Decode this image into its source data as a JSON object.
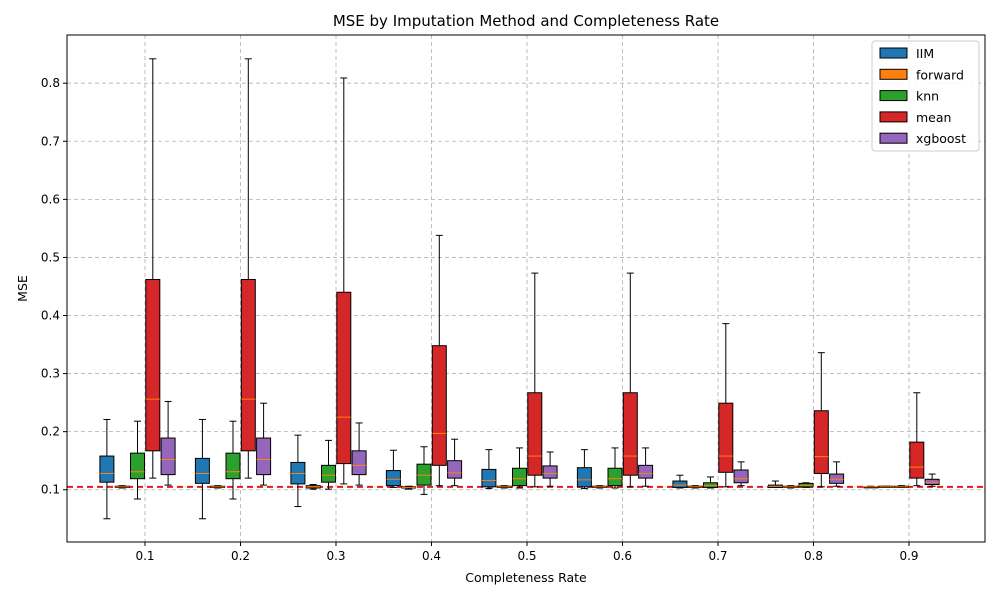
{
  "chart_data": {
    "type": "box",
    "title": "MSE by Imputation Method and Completeness Rate",
    "xlabel": "Completeness Rate",
    "ylabel": "MSE",
    "categories": [
      "0.1",
      "0.2",
      "0.3",
      "0.4",
      "0.5",
      "0.6",
      "0.7",
      "0.8",
      "0.9"
    ],
    "ylim": [
      0.01,
      0.883
    ],
    "yticks": [
      "0.1",
      "0.2",
      "0.3",
      "0.4",
      "0.5",
      "0.6",
      "0.7",
      "0.8"
    ],
    "grid": true,
    "legend_position": "top-right",
    "reference_line": {
      "y": 0.105,
      "color": "#e41a1c",
      "style": "dashed"
    },
    "series": [
      {
        "name": "IIM",
        "color": "#1f77b4",
        "boxes": [
          {
            "whislo": 0.05,
            "q1": 0.113,
            "med": 0.128,
            "q3": 0.158,
            "whishi": 0.221
          },
          {
            "whislo": 0.05,
            "q1": 0.111,
            "med": 0.128,
            "q3": 0.154,
            "whishi": 0.221
          },
          {
            "whislo": 0.071,
            "q1": 0.11,
            "med": 0.128,
            "q3": 0.147,
            "whishi": 0.194
          },
          {
            "whislo": 0.104,
            "q1": 0.107,
            "med": 0.118,
            "q3": 0.133,
            "whishi": 0.168
          },
          {
            "whislo": 0.102,
            "q1": 0.105,
            "med": 0.116,
            "q3": 0.135,
            "whishi": 0.169
          },
          {
            "whislo": 0.102,
            "q1": 0.105,
            "med": 0.117,
            "q3": 0.138,
            "whishi": 0.169
          },
          {
            "whislo": 0.103,
            "q1": 0.104,
            "med": 0.108,
            "q3": 0.115,
            "whishi": 0.125
          },
          {
            "whislo": 0.104,
            "q1": 0.104,
            "med": 0.106,
            "q3": 0.108,
            "whishi": 0.115
          },
          {
            "whislo": 0.104,
            "q1": 0.104,
            "med": 0.105,
            "q3": 0.105,
            "whishi": 0.106
          }
        ]
      },
      {
        "name": "forward",
        "color": "#ff7f0e",
        "boxes": [
          {
            "whislo": 0.103,
            "q1": 0.104,
            "med": 0.105,
            "q3": 0.106,
            "whishi": 0.107
          },
          {
            "whislo": 0.103,
            "q1": 0.104,
            "med": 0.105,
            "q3": 0.106,
            "whishi": 0.107
          },
          {
            "whislo": 0.101,
            "q1": 0.103,
            "med": 0.105,
            "q3": 0.107,
            "whishi": 0.109
          },
          {
            "whislo": 0.101,
            "q1": 0.103,
            "med": 0.104,
            "q3": 0.105,
            "whishi": 0.106
          },
          {
            "whislo": 0.103,
            "q1": 0.104,
            "med": 0.105,
            "q3": 0.106,
            "whishi": 0.107
          },
          {
            "whislo": 0.103,
            "q1": 0.104,
            "med": 0.105,
            "q3": 0.106,
            "whishi": 0.107
          },
          {
            "whislo": 0.103,
            "q1": 0.104,
            "med": 0.105,
            "q3": 0.106,
            "whishi": 0.107
          },
          {
            "whislo": 0.103,
            "q1": 0.104,
            "med": 0.105,
            "q3": 0.106,
            "whishi": 0.107
          },
          {
            "whislo": 0.104,
            "q1": 0.104,
            "med": 0.105,
            "q3": 0.106,
            "whishi": 0.106
          }
        ]
      },
      {
        "name": "knn",
        "color": "#2ca02c",
        "boxes": [
          {
            "whislo": 0.084,
            "q1": 0.119,
            "med": 0.131,
            "q3": 0.163,
            "whishi": 0.218
          },
          {
            "whislo": 0.084,
            "q1": 0.119,
            "med": 0.131,
            "q3": 0.163,
            "whishi": 0.218
          },
          {
            "whislo": 0.101,
            "q1": 0.113,
            "med": 0.125,
            "q3": 0.142,
            "whishi": 0.185
          },
          {
            "whislo": 0.092,
            "q1": 0.108,
            "med": 0.125,
            "q3": 0.144,
            "whishi": 0.174
          },
          {
            "whislo": 0.103,
            "q1": 0.107,
            "med": 0.119,
            "q3": 0.137,
            "whishi": 0.172
          },
          {
            "whislo": 0.103,
            "q1": 0.107,
            "med": 0.119,
            "q3": 0.137,
            "whishi": 0.172
          },
          {
            "whislo": 0.103,
            "q1": 0.104,
            "med": 0.107,
            "q3": 0.112,
            "whishi": 0.122
          },
          {
            "whislo": 0.104,
            "q1": 0.105,
            "med": 0.107,
            "q3": 0.111,
            "whishi": 0.112
          },
          {
            "whislo": 0.104,
            "q1": 0.104,
            "med": 0.105,
            "q3": 0.106,
            "whishi": 0.107
          }
        ]
      },
      {
        "name": "mean",
        "color": "#d62728",
        "boxes": [
          {
            "whislo": 0.12,
            "q1": 0.167,
            "med": 0.256,
            "q3": 0.462,
            "whishi": 0.842
          },
          {
            "whislo": 0.12,
            "q1": 0.167,
            "med": 0.256,
            "q3": 0.462,
            "whishi": 0.842
          },
          {
            "whislo": 0.11,
            "q1": 0.145,
            "med": 0.225,
            "q3": 0.44,
            "whishi": 0.809
          },
          {
            "whislo": 0.107,
            "q1": 0.142,
            "med": 0.197,
            "q3": 0.348,
            "whishi": 0.538
          },
          {
            "whislo": 0.105,
            "q1": 0.125,
            "med": 0.158,
            "q3": 0.267,
            "whishi": 0.473
          },
          {
            "whislo": 0.105,
            "q1": 0.125,
            "med": 0.158,
            "q3": 0.267,
            "whishi": 0.473
          },
          {
            "whislo": 0.105,
            "q1": 0.13,
            "med": 0.158,
            "q3": 0.249,
            "whishi": 0.386
          },
          {
            "whislo": 0.105,
            "q1": 0.128,
            "med": 0.157,
            "q3": 0.236,
            "whishi": 0.336
          },
          {
            "whislo": 0.107,
            "q1": 0.12,
            "med": 0.139,
            "q3": 0.182,
            "whishi": 0.267
          }
        ]
      },
      {
        "name": "xgboost",
        "color": "#9467bd",
        "boxes": [
          {
            "whislo": 0.108,
            "q1": 0.126,
            "med": 0.152,
            "q3": 0.189,
            "whishi": 0.252
          },
          {
            "whislo": 0.108,
            "q1": 0.126,
            "med": 0.152,
            "q3": 0.189,
            "whishi": 0.249
          },
          {
            "whislo": 0.108,
            "q1": 0.126,
            "med": 0.142,
            "q3": 0.167,
            "whishi": 0.215
          },
          {
            "whislo": 0.107,
            "q1": 0.12,
            "med": 0.129,
            "q3": 0.15,
            "whishi": 0.187
          },
          {
            "whislo": 0.106,
            "q1": 0.12,
            "med": 0.128,
            "q3": 0.141,
            "whishi": 0.165
          },
          {
            "whislo": 0.106,
            "q1": 0.12,
            "med": 0.128,
            "q3": 0.142,
            "whishi": 0.172
          },
          {
            "whislo": 0.107,
            "q1": 0.112,
            "med": 0.119,
            "q3": 0.134,
            "whishi": 0.148
          },
          {
            "whislo": 0.106,
            "q1": 0.111,
            "med": 0.118,
            "q3": 0.127,
            "whishi": 0.148
          },
          {
            "whislo": 0.106,
            "q1": 0.109,
            "med": 0.113,
            "q3": 0.118,
            "whishi": 0.127
          }
        ]
      }
    ]
  }
}
